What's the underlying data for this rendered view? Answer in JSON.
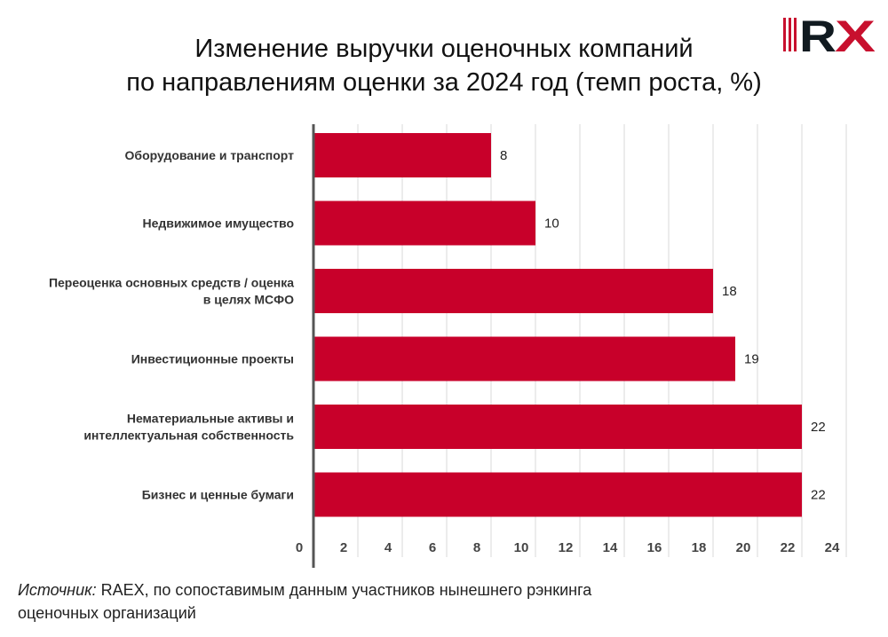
{
  "title_lines": [
    "Изменение выручки оценочных компаний",
    "по направлениям оценки за 2024 год (темп роста, %)"
  ],
  "logo": {
    "text": "RX",
    "colors": {
      "red": "#c8102e",
      "dark": "#111a20"
    }
  },
  "source": {
    "label": "Источник:",
    "text": " RAEX, по сопоставимым данным участников нынешнего рэнкинга",
    "text2": "оценочных организаций"
  },
  "chart_data": {
    "type": "bar",
    "orientation": "horizontal",
    "categories": [
      [
        "Оборудование и транспорт"
      ],
      [
        "Недвижимое имущество"
      ],
      [
        "Переоценка основных средств / оценка",
        "в целях МСФО"
      ],
      [
        "Инвестиционные проекты"
      ],
      [
        "Нематериальные активы и",
        "интеллектуальная собственность"
      ],
      [
        "Бизнес и ценные бумаги"
      ]
    ],
    "values": [
      8,
      10,
      18,
      19,
      22,
      22
    ],
    "xlim": [
      0,
      24
    ],
    "xticks": [
      0,
      2,
      4,
      6,
      8,
      10,
      12,
      14,
      16,
      18,
      20,
      22,
      24
    ],
    "bar_color": "#c8002a",
    "grid": true
  }
}
